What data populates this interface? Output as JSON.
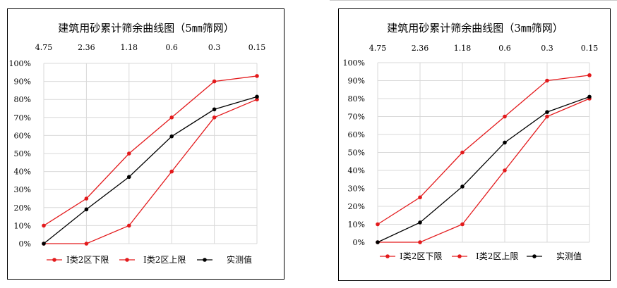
{
  "chart_data": [
    {
      "type": "line",
      "title": "建筑用砂累计筛余曲线图（5㎜筛网）",
      "categories": [
        "4.75",
        "2.36",
        "1.18",
        "0.6",
        "0.3",
        "0.15"
      ],
      "y_ticks": [
        "0%",
        "10%",
        "20%",
        "30%",
        "40%",
        "50%",
        "60%",
        "70%",
        "80%",
        "90%",
        "100%"
      ],
      "ylim": [
        0,
        100
      ],
      "grid": true,
      "legend_position": "bottom",
      "series": [
        {
          "name": "I类2区下限",
          "color": "#e31a1c",
          "values": [
            0,
            0,
            10,
            40,
            70,
            80
          ]
        },
        {
          "name": "I类2区上限",
          "color": "#e31a1c",
          "values": [
            10,
            25,
            50,
            70,
            90,
            93
          ]
        },
        {
          "name": "实测值",
          "color": "#000000",
          "values": [
            0,
            19,
            37,
            59.5,
            74.5,
            81.5
          ]
        }
      ]
    },
    {
      "type": "line",
      "title": "建筑用砂累计筛余曲线图（3㎜筛网）",
      "categories": [
        "4.75",
        "2.36",
        "1.18",
        "0.6",
        "0.3",
        "0.15"
      ],
      "y_ticks": [
        "0%",
        "10%",
        "20%",
        "30%",
        "40%",
        "50%",
        "60%",
        "70%",
        "80%",
        "90%",
        "100%"
      ],
      "ylim": [
        0,
        100
      ],
      "grid": true,
      "legend_position": "bottom",
      "series": [
        {
          "name": "I类2区下限",
          "color": "#e31a1c",
          "values": [
            0,
            0,
            10,
            40,
            70,
            80
          ]
        },
        {
          "name": "I类2区上限",
          "color": "#e31a1c",
          "values": [
            10,
            25,
            50,
            70,
            90,
            93
          ]
        },
        {
          "name": "实测值",
          "color": "#000000",
          "values": [
            0,
            11,
            31,
            55.5,
            72.5,
            81
          ]
        }
      ]
    }
  ]
}
